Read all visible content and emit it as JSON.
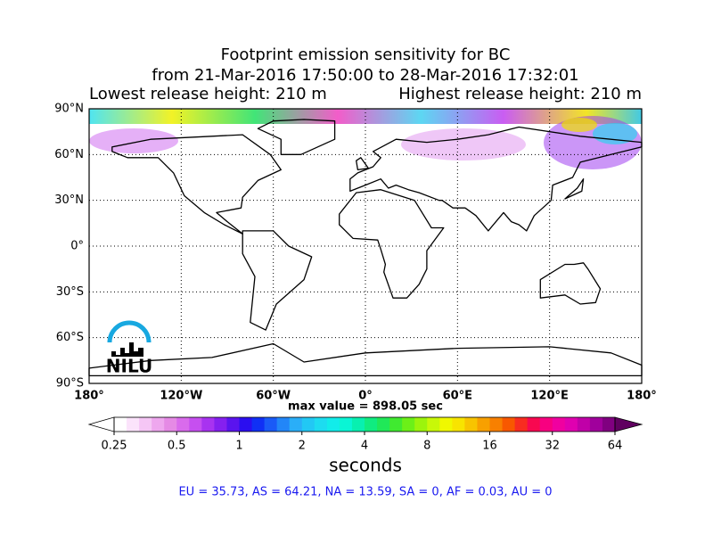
{
  "chart_data": {
    "type": "map",
    "title_lines": [
      "Footprint emission sensitivity for BC",
      "from 21-Mar-2016 17:50:00 to 28-Mar-2016 17:32:01"
    ],
    "release_height_low": "Lowest release height: 210 m",
    "release_height_high": "Highest release height: 210 m",
    "xlim": [
      -180,
      180
    ],
    "ylim": [
      -90,
      90
    ],
    "xticks": [
      {
        "value": -180,
        "label": "180°"
      },
      {
        "value": -120,
        "label": "120°W"
      },
      {
        "value": -60,
        "label": "60°W"
      },
      {
        "value": 0,
        "label": "0°"
      },
      {
        "value": 60,
        "label": "60°E"
      },
      {
        "value": 120,
        "label": "120°E"
      },
      {
        "value": 180,
        "label": "180°"
      }
    ],
    "yticks": [
      {
        "value": 90,
        "label": "90°N"
      },
      {
        "value": 60,
        "label": "60°N"
      },
      {
        "value": 30,
        "label": "30°N"
      },
      {
        "value": 0,
        "label": "0°"
      },
      {
        "value": -30,
        "label": "30°S"
      },
      {
        "value": -60,
        "label": "60°S"
      },
      {
        "value": -90,
        "label": "90°S"
      }
    ],
    "grid": true,
    "max_value_label": "max value = 898.05 sec",
    "colorbar": {
      "label": "seconds",
      "log": true,
      "lim": [
        0.25,
        64
      ],
      "ticks": [
        0.25,
        0.5,
        1,
        2,
        4,
        8,
        16,
        32,
        64
      ],
      "under_color": "#ffffff",
      "over_color": "#600060",
      "colors": [
        "#ffffff",
        "#fbe3fb",
        "#f5c6f5",
        "#eea7ee",
        "#e58ae5",
        "#d96bec",
        "#c64ff0",
        "#a833f0",
        "#8520ef",
        "#5a14ee",
        "#2b0ef0",
        "#1030f5",
        "#1a5af7",
        "#2286f8",
        "#2aaef8",
        "#22c8f4",
        "#1ddcf0",
        "#12ecea",
        "#0af5d5",
        "#08f0b0",
        "#10ec80",
        "#20e858",
        "#40ea30",
        "#6cf018",
        "#9cf40c",
        "#c8f808",
        "#f0f800",
        "#f8e400",
        "#f8c400",
        "#f8a000",
        "#f88000",
        "#f85800",
        "#f82c20",
        "#f80850",
        "#f80080",
        "#f000a0",
        "#e000b0",
        "#c000a8",
        "#a0009c",
        "#800080"
      ]
    },
    "regional_totals": "EU = 35.73,  AS = 64.21,  NA = 13.59,  SA = 0,  AF = 0.03,  AU = 0",
    "logo_text": "NILU"
  }
}
